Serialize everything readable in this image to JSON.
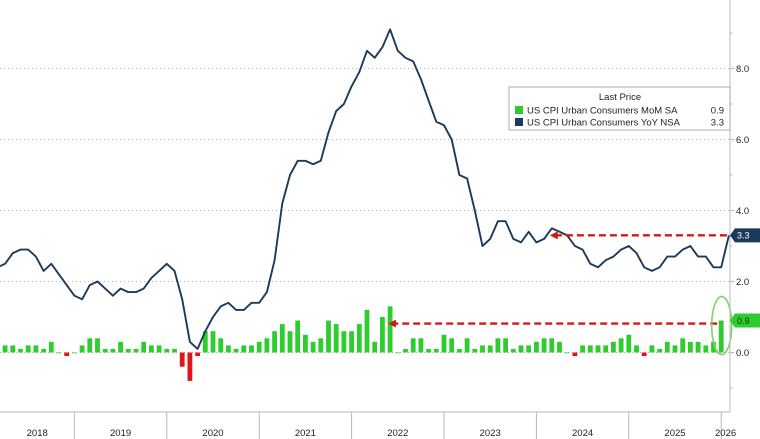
{
  "colors": {
    "mom": "#2ecc2e",
    "mom_negative": "#e0151b",
    "yoy": "#1b3a5c",
    "arrow": "#d11a1a",
    "circle": "#7ed36a",
    "grid": "#9a9a9a",
    "axis": "#b8b8b8"
  },
  "chart_data": {
    "type": "bar",
    "x_axis": {
      "start": "2018-01",
      "end": "2026-01",
      "year_labels": [
        "2018",
        "2019",
        "2020",
        "2021",
        "2022",
        "2023",
        "2024",
        "2025",
        "2026"
      ]
    },
    "y_axis": {
      "position": "right",
      "ylim": [
        -1.6,
        9.9
      ],
      "ticks": [
        0,
        2,
        4,
        6,
        8
      ],
      "tick_labels": [
        "0.0",
        "2.0",
        "4.0",
        "6.0",
        "8.0"
      ]
    },
    "grid": "horizontal dotted",
    "legend": {
      "title": "Last Price",
      "placement": "top-right",
      "entries": [
        {
          "name": "US CPI Urban Consumers MoM SA",
          "value": "0.9"
        },
        {
          "name": "US CPI Urban Consumers YoY NSA",
          "value": "3.3"
        }
      ]
    },
    "series": [
      {
        "name": "US CPI Urban Consumers MoM SA",
        "type": "bar",
        "last_value": "0.9",
        "values": [
          {
            "x": "2018-01",
            "y": 0.5
          },
          {
            "x": "2018-02",
            "y": 0.2
          },
          {
            "x": "2018-03",
            "y": -0.1
          },
          {
            "x": "2018-04",
            "y": 0.2
          },
          {
            "x": "2018-05",
            "y": 0.2
          },
          {
            "x": "2018-06",
            "y": 0.1
          },
          {
            "x": "2018-07",
            "y": 0.2
          },
          {
            "x": "2018-08",
            "y": 0.2
          },
          {
            "x": "2018-09",
            "y": 0.1
          },
          {
            "x": "2018-10",
            "y": 0.3
          },
          {
            "x": "2018-11",
            "y": 0.0
          },
          {
            "x": "2018-12",
            "y": -0.1
          },
          {
            "x": "2019-01",
            "y": 0.0
          },
          {
            "x": "2019-02",
            "y": 0.2
          },
          {
            "x": "2019-03",
            "y": 0.4
          },
          {
            "x": "2019-04",
            "y": 0.4
          },
          {
            "x": "2019-05",
            "y": 0.1
          },
          {
            "x": "2019-06",
            "y": 0.1
          },
          {
            "x": "2019-07",
            "y": 0.3
          },
          {
            "x": "2019-08",
            "y": 0.1
          },
          {
            "x": "2019-09",
            "y": 0.1
          },
          {
            "x": "2019-10",
            "y": 0.3
          },
          {
            "x": "2019-11",
            "y": 0.2
          },
          {
            "x": "2019-12",
            "y": 0.2
          },
          {
            "x": "2020-01",
            "y": 0.1
          },
          {
            "x": "2020-02",
            "y": 0.1
          },
          {
            "x": "2020-03",
            "y": -0.4
          },
          {
            "x": "2020-04",
            "y": -0.8
          },
          {
            "x": "2020-05",
            "y": -0.1
          },
          {
            "x": "2020-06",
            "y": 0.6
          },
          {
            "x": "2020-07",
            "y": 0.6
          },
          {
            "x": "2020-08",
            "y": 0.4
          },
          {
            "x": "2020-09",
            "y": 0.2
          },
          {
            "x": "2020-10",
            "y": 0.1
          },
          {
            "x": "2020-11",
            "y": 0.2
          },
          {
            "x": "2020-12",
            "y": 0.2
          },
          {
            "x": "2021-01",
            "y": 0.3
          },
          {
            "x": "2021-02",
            "y": 0.4
          },
          {
            "x": "2021-03",
            "y": 0.6
          },
          {
            "x": "2021-04",
            "y": 0.8
          },
          {
            "x": "2021-05",
            "y": 0.6
          },
          {
            "x": "2021-06",
            "y": 0.9
          },
          {
            "x": "2021-07",
            "y": 0.5
          },
          {
            "x": "2021-08",
            "y": 0.3
          },
          {
            "x": "2021-09",
            "y": 0.4
          },
          {
            "x": "2021-10",
            "y": 0.9
          },
          {
            "x": "2021-11",
            "y": 0.8
          },
          {
            "x": "2021-12",
            "y": 0.6
          },
          {
            "x": "2022-01",
            "y": 0.6
          },
          {
            "x": "2022-02",
            "y": 0.8
          },
          {
            "x": "2022-03",
            "y": 1.2
          },
          {
            "x": "2022-04",
            "y": 0.3
          },
          {
            "x": "2022-05",
            "y": 1.0
          },
          {
            "x": "2022-06",
            "y": 1.3
          },
          {
            "x": "2022-07",
            "y": 0.0
          },
          {
            "x": "2022-08",
            "y": 0.1
          },
          {
            "x": "2022-09",
            "y": 0.4
          },
          {
            "x": "2022-10",
            "y": 0.4
          },
          {
            "x": "2022-11",
            "y": 0.1
          },
          {
            "x": "2022-12",
            "y": 0.1
          },
          {
            "x": "2023-01",
            "y": 0.5
          },
          {
            "x": "2023-02",
            "y": 0.4
          },
          {
            "x": "2023-03",
            "y": 0.1
          },
          {
            "x": "2023-04",
            "y": 0.4
          },
          {
            "x": "2023-05",
            "y": 0.1
          },
          {
            "x": "2023-06",
            "y": 0.2
          },
          {
            "x": "2023-07",
            "y": 0.2
          },
          {
            "x": "2023-08",
            "y": 0.4
          },
          {
            "x": "2023-09",
            "y": 0.4
          },
          {
            "x": "2023-10",
            "y": 0.1
          },
          {
            "x": "2023-11",
            "y": 0.2
          },
          {
            "x": "2023-12",
            "y": 0.2
          },
          {
            "x": "2024-01",
            "y": 0.3
          },
          {
            "x": "2024-02",
            "y": 0.4
          },
          {
            "x": "2024-03",
            "y": 0.4
          },
          {
            "x": "2024-04",
            "y": 0.3
          },
          {
            "x": "2024-05",
            "y": 0.0
          },
          {
            "x": "2024-06",
            "y": -0.1
          },
          {
            "x": "2024-07",
            "y": 0.2
          },
          {
            "x": "2024-08",
            "y": 0.2
          },
          {
            "x": "2024-09",
            "y": 0.2
          },
          {
            "x": "2024-10",
            "y": 0.2
          },
          {
            "x": "2024-11",
            "y": 0.3
          },
          {
            "x": "2024-12",
            "y": 0.4
          },
          {
            "x": "2025-01",
            "y": 0.5
          },
          {
            "x": "2025-02",
            "y": 0.2
          },
          {
            "x": "2025-03",
            "y": -0.1
          },
          {
            "x": "2025-04",
            "y": 0.2
          },
          {
            "x": "2025-05",
            "y": 0.1
          },
          {
            "x": "2025-06",
            "y": 0.3
          },
          {
            "x": "2025-07",
            "y": 0.2
          },
          {
            "x": "2025-08",
            "y": 0.4
          },
          {
            "x": "2025-09",
            "y": 0.3
          },
          {
            "x": "2025-10",
            "y": 0.3
          },
          {
            "x": "2025-11",
            "y": 0.2
          },
          {
            "x": "2025-12",
            "y": 0.3
          },
          {
            "x": "2026-01",
            "y": 0.9
          }
        ]
      },
      {
        "name": "US CPI Urban Consumers YoY NSA",
        "type": "line",
        "last_value": "3.3",
        "values": [
          {
            "x": "2018-01",
            "y": 2.1
          },
          {
            "x": "2018-02",
            "y": 2.2
          },
          {
            "x": "2018-03",
            "y": 2.4
          },
          {
            "x": "2018-04",
            "y": 2.5
          },
          {
            "x": "2018-05",
            "y": 2.8
          },
          {
            "x": "2018-06",
            "y": 2.9
          },
          {
            "x": "2018-07",
            "y": 2.9
          },
          {
            "x": "2018-08",
            "y": 2.7
          },
          {
            "x": "2018-09",
            "y": 2.3
          },
          {
            "x": "2018-10",
            "y": 2.5
          },
          {
            "x": "2018-11",
            "y": 2.2
          },
          {
            "x": "2018-12",
            "y": 1.9
          },
          {
            "x": "2019-01",
            "y": 1.6
          },
          {
            "x": "2019-02",
            "y": 1.5
          },
          {
            "x": "2019-03",
            "y": 1.9
          },
          {
            "x": "2019-04",
            "y": 2.0
          },
          {
            "x": "2019-05",
            "y": 1.8
          },
          {
            "x": "2019-06",
            "y": 1.6
          },
          {
            "x": "2019-07",
            "y": 1.8
          },
          {
            "x": "2019-08",
            "y": 1.7
          },
          {
            "x": "2019-09",
            "y": 1.7
          },
          {
            "x": "2019-10",
            "y": 1.8
          },
          {
            "x": "2019-11",
            "y": 2.1
          },
          {
            "x": "2019-12",
            "y": 2.3
          },
          {
            "x": "2020-01",
            "y": 2.5
          },
          {
            "x": "2020-02",
            "y": 2.3
          },
          {
            "x": "2020-03",
            "y": 1.5
          },
          {
            "x": "2020-04",
            "y": 0.3
          },
          {
            "x": "2020-05",
            "y": 0.1
          },
          {
            "x": "2020-06",
            "y": 0.6
          },
          {
            "x": "2020-07",
            "y": 1.0
          },
          {
            "x": "2020-08",
            "y": 1.3
          },
          {
            "x": "2020-09",
            "y": 1.4
          },
          {
            "x": "2020-10",
            "y": 1.2
          },
          {
            "x": "2020-11",
            "y": 1.2
          },
          {
            "x": "2020-12",
            "y": 1.4
          },
          {
            "x": "2021-01",
            "y": 1.4
          },
          {
            "x": "2021-02",
            "y": 1.7
          },
          {
            "x": "2021-03",
            "y": 2.6
          },
          {
            "x": "2021-04",
            "y": 4.2
          },
          {
            "x": "2021-05",
            "y": 5.0
          },
          {
            "x": "2021-06",
            "y": 5.4
          },
          {
            "x": "2021-07",
            "y": 5.4
          },
          {
            "x": "2021-08",
            "y": 5.3
          },
          {
            "x": "2021-09",
            "y": 5.4
          },
          {
            "x": "2021-10",
            "y": 6.2
          },
          {
            "x": "2021-11",
            "y": 6.8
          },
          {
            "x": "2021-12",
            "y": 7.0
          },
          {
            "x": "2022-01",
            "y": 7.5
          },
          {
            "x": "2022-02",
            "y": 7.9
          },
          {
            "x": "2022-03",
            "y": 8.5
          },
          {
            "x": "2022-04",
            "y": 8.3
          },
          {
            "x": "2022-05",
            "y": 8.6
          },
          {
            "x": "2022-06",
            "y": 9.1
          },
          {
            "x": "2022-07",
            "y": 8.5
          },
          {
            "x": "2022-08",
            "y": 8.3
          },
          {
            "x": "2022-09",
            "y": 8.2
          },
          {
            "x": "2022-10",
            "y": 7.7
          },
          {
            "x": "2022-11",
            "y": 7.1
          },
          {
            "x": "2022-12",
            "y": 6.5
          },
          {
            "x": "2023-01",
            "y": 6.4
          },
          {
            "x": "2023-02",
            "y": 6.0
          },
          {
            "x": "2023-03",
            "y": 5.0
          },
          {
            "x": "2023-04",
            "y": 4.9
          },
          {
            "x": "2023-05",
            "y": 4.0
          },
          {
            "x": "2023-06",
            "y": 3.0
          },
          {
            "x": "2023-07",
            "y": 3.2
          },
          {
            "x": "2023-08",
            "y": 3.7
          },
          {
            "x": "2023-09",
            "y": 3.7
          },
          {
            "x": "2023-10",
            "y": 3.2
          },
          {
            "x": "2023-11",
            "y": 3.1
          },
          {
            "x": "2023-12",
            "y": 3.4
          },
          {
            "x": "2024-01",
            "y": 3.1
          },
          {
            "x": "2024-02",
            "y": 3.2
          },
          {
            "x": "2024-03",
            "y": 3.5
          },
          {
            "x": "2024-04",
            "y": 3.4
          },
          {
            "x": "2024-05",
            "y": 3.3
          },
          {
            "x": "2024-06",
            "y": 3.0
          },
          {
            "x": "2024-07",
            "y": 2.9
          },
          {
            "x": "2024-08",
            "y": 2.5
          },
          {
            "x": "2024-09",
            "y": 2.4
          },
          {
            "x": "2024-10",
            "y": 2.6
          },
          {
            "x": "2024-11",
            "y": 2.7
          },
          {
            "x": "2024-12",
            "y": 2.9
          },
          {
            "x": "2025-01",
            "y": 3.0
          },
          {
            "x": "2025-02",
            "y": 2.8
          },
          {
            "x": "2025-03",
            "y": 2.4
          },
          {
            "x": "2025-04",
            "y": 2.3
          },
          {
            "x": "2025-05",
            "y": 2.4
          },
          {
            "x": "2025-06",
            "y": 2.7
          },
          {
            "x": "2025-07",
            "y": 2.7
          },
          {
            "x": "2025-08",
            "y": 2.9
          },
          {
            "x": "2025-09",
            "y": 3.0
          },
          {
            "x": "2025-10",
            "y": 2.7
          },
          {
            "x": "2025-11",
            "y": 2.7
          },
          {
            "x": "2025-12",
            "y": 2.4
          },
          {
            "x": "2026-01",
            "y": 2.4
          },
          {
            "x": "2026-02",
            "y": 3.3
          }
        ]
      }
    ],
    "annotations": [
      {
        "type": "dashed-arrow",
        "series": "US CPI Urban Consumers YoY NSA",
        "from_x": "2026-02",
        "to_x": "2024-03",
        "y": 3.3
      },
      {
        "type": "dashed-arrow",
        "series": "US CPI Urban Consumers MoM SA",
        "from_x": "2026-01",
        "to_x": "2022-06",
        "y": 0.9
      },
      {
        "type": "circle",
        "x": "2026-01",
        "y": 0.9
      }
    ]
  }
}
